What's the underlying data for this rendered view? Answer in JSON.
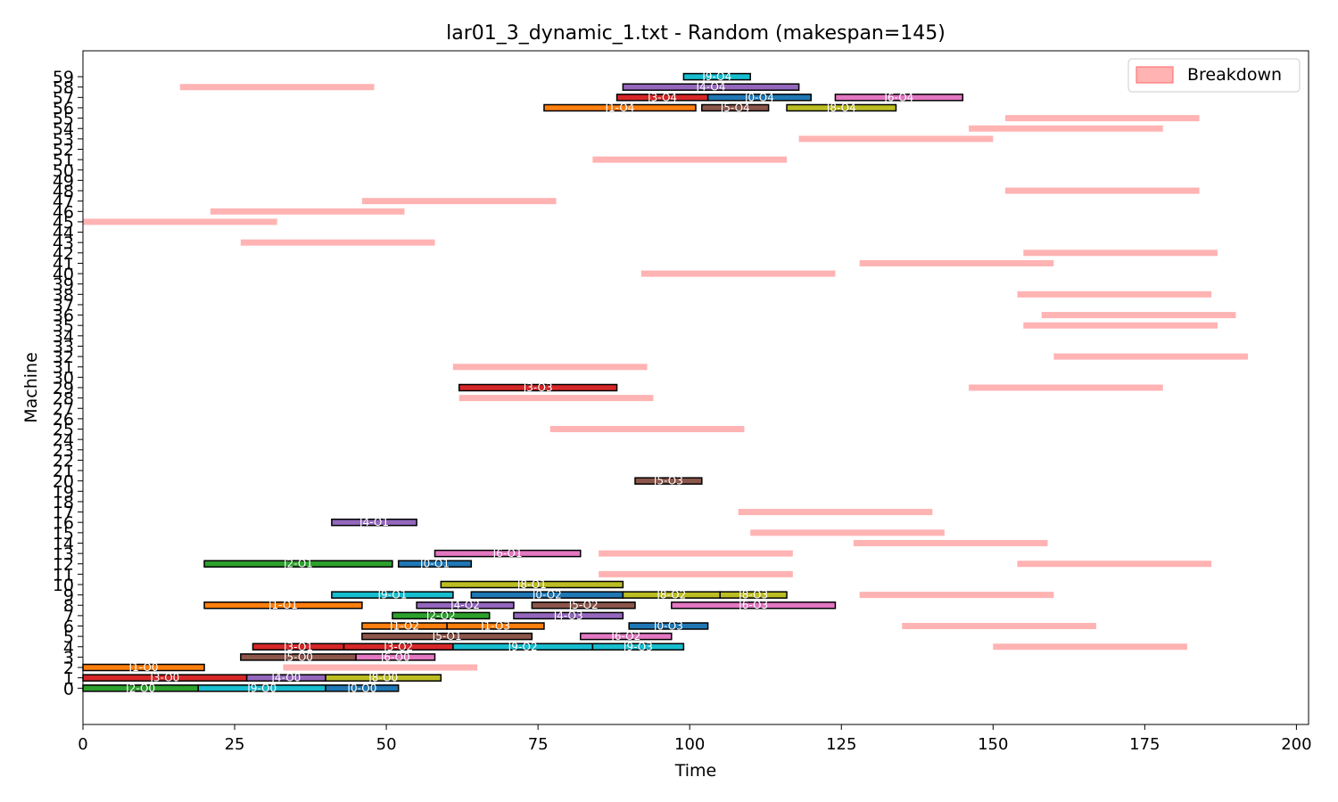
{
  "chart_data": {
    "type": "gantt",
    "title": "lar01_3_dynamic_1.txt - Random (makespan=145)",
    "xlabel": "Time",
    "ylabel": "Machine",
    "xlim": [
      0,
      202
    ],
    "ylim": [
      -3.5,
      61.5
    ],
    "xticks": [
      0,
      25,
      50,
      75,
      100,
      125,
      150,
      175,
      200
    ],
    "yticks": [
      0,
      1,
      2,
      3,
      4,
      5,
      6,
      7,
      8,
      9,
      10,
      11,
      12,
      13,
      14,
      15,
      16,
      17,
      18,
      19,
      20,
      21,
      22,
      23,
      24,
      25,
      26,
      27,
      28,
      29,
      30,
      31,
      32,
      33,
      34,
      35,
      36,
      37,
      38,
      39,
      40,
      41,
      42,
      43,
      44,
      45,
      46,
      47,
      48,
      49,
      50,
      51,
      52,
      53,
      54,
      55,
      56,
      57,
      58,
      59
    ],
    "legend": {
      "label": "Breakdown",
      "placement": "top-right",
      "color": "#ffb3b3"
    },
    "job_colors": {
      "J0": "#1f77b4",
      "J1": "#ff7f0e",
      "J2": "#2ca02c",
      "J3": "#d62728",
      "J4": "#9467bd",
      "J5": "#8c564b",
      "J6": "#e377c2",
      "J8": "#bcbd22",
      "J9": "#17becf"
    },
    "operations": [
      {
        "machine": 0,
        "start": 0,
        "end": 19,
        "job": "J2",
        "label": "J2-O0"
      },
      {
        "machine": 0,
        "start": 19,
        "end": 40,
        "job": "J9",
        "label": "J9-O0"
      },
      {
        "machine": 0,
        "start": 40,
        "end": 52,
        "job": "J0",
        "label": "J0-O0"
      },
      {
        "machine": 1,
        "start": 0,
        "end": 27,
        "job": "J3",
        "label": "J3-O0"
      },
      {
        "machine": 1,
        "start": 27,
        "end": 40,
        "job": "J4",
        "label": "J4-O0"
      },
      {
        "machine": 1,
        "start": 40,
        "end": 59,
        "job": "J8",
        "label": "J8-O0"
      },
      {
        "machine": 2,
        "start": 0,
        "end": 20,
        "job": "J1",
        "label": "J1-O0"
      },
      {
        "machine": 3,
        "start": 26,
        "end": 45,
        "job": "J5",
        "label": "J5-O0"
      },
      {
        "machine": 3,
        "start": 45,
        "end": 58,
        "job": "J6",
        "label": "J6-O0"
      },
      {
        "machine": 4,
        "start": 28,
        "end": 43,
        "job": "J3",
        "label": "J3-O1"
      },
      {
        "machine": 4,
        "start": 43,
        "end": 61,
        "job": "J3",
        "label": "J3-O2"
      },
      {
        "machine": 4,
        "start": 61,
        "end": 84,
        "job": "J9",
        "label": "J9-O2"
      },
      {
        "machine": 4,
        "start": 84,
        "end": 99,
        "job": "J9",
        "label": "J9-O3"
      },
      {
        "machine": 5,
        "start": 46,
        "end": 74,
        "job": "J5",
        "label": "J5-O1"
      },
      {
        "machine": 5,
        "start": 82,
        "end": 97,
        "job": "J6",
        "label": "J6-O2"
      },
      {
        "machine": 6,
        "start": 46,
        "end": 60,
        "job": "J1",
        "label": "J1-O2"
      },
      {
        "machine": 6,
        "start": 60,
        "end": 76,
        "job": "J1",
        "label": "J1-O3"
      },
      {
        "machine": 6,
        "start": 90,
        "end": 103,
        "job": "J0",
        "label": "J0-O3"
      },
      {
        "machine": 7,
        "start": 51,
        "end": 67,
        "job": "J2",
        "label": "J2-O2"
      },
      {
        "machine": 7,
        "start": 71,
        "end": 89,
        "job": "J4",
        "label": "J4-O3"
      },
      {
        "machine": 8,
        "start": 20,
        "end": 46,
        "job": "J1",
        "label": "J1-O1"
      },
      {
        "machine": 8,
        "start": 55,
        "end": 71,
        "job": "J4",
        "label": "J4-O2"
      },
      {
        "machine": 8,
        "start": 74,
        "end": 91,
        "job": "J5",
        "label": "J5-O2"
      },
      {
        "machine": 8,
        "start": 97,
        "end": 124,
        "job": "J6",
        "label": "J6-O3"
      },
      {
        "machine": 9,
        "start": 41,
        "end": 61,
        "job": "J9",
        "label": "J9-O1"
      },
      {
        "machine": 9,
        "start": 64,
        "end": 89,
        "job": "J0",
        "label": "J0-O2"
      },
      {
        "machine": 9,
        "start": 89,
        "end": 105,
        "job": "J8",
        "label": "J8-O2"
      },
      {
        "machine": 9,
        "start": 105,
        "end": 116,
        "job": "J8",
        "label": "J8-O3"
      },
      {
        "machine": 10,
        "start": 59,
        "end": 89,
        "job": "J8",
        "label": "J8-O1"
      },
      {
        "machine": 12,
        "start": 20,
        "end": 51,
        "job": "J2",
        "label": "J2-O1"
      },
      {
        "machine": 12,
        "start": 52,
        "end": 64,
        "job": "J0",
        "label": "J0-O1"
      },
      {
        "machine": 13,
        "start": 58,
        "end": 82,
        "job": "J6",
        "label": "J6-O1"
      },
      {
        "machine": 16,
        "start": 41,
        "end": 55,
        "job": "J4",
        "label": "J4-O1"
      },
      {
        "machine": 20,
        "start": 91,
        "end": 102,
        "job": "J5",
        "label": "J5-O3"
      },
      {
        "machine": 29,
        "start": 62,
        "end": 88,
        "job": "J3",
        "label": "J3-O3"
      },
      {
        "machine": 56,
        "start": 76,
        "end": 101,
        "job": "J1",
        "label": "J1-O4"
      },
      {
        "machine": 56,
        "start": 102,
        "end": 113,
        "job": "J5",
        "label": "J5-O4"
      },
      {
        "machine": 56,
        "start": 116,
        "end": 134,
        "job": "J8",
        "label": "J8-O4"
      },
      {
        "machine": 57,
        "start": 88,
        "end": 103,
        "job": "J3",
        "label": "J3-O4"
      },
      {
        "machine": 57,
        "start": 103,
        "end": 120,
        "job": "J0",
        "label": "J0-O4"
      },
      {
        "machine": 57,
        "start": 124,
        "end": 145,
        "job": "J6",
        "label": "J6-O4"
      },
      {
        "machine": 58,
        "start": 89,
        "end": 118,
        "job": "J4",
        "label": "J4-O4"
      },
      {
        "machine": 59,
        "start": 99,
        "end": 110,
        "job": "J9",
        "label": "J9-O4"
      }
    ],
    "breakdowns": [
      {
        "machine": 2,
        "start": 33,
        "end": 65
      },
      {
        "machine": 4,
        "start": 150,
        "end": 182
      },
      {
        "machine": 6,
        "start": 135,
        "end": 167
      },
      {
        "machine": 9,
        "start": 128,
        "end": 160
      },
      {
        "machine": 11,
        "start": 85,
        "end": 117
      },
      {
        "machine": 12,
        "start": 154,
        "end": 186
      },
      {
        "machine": 13,
        "start": 85,
        "end": 117
      },
      {
        "machine": 14,
        "start": 127,
        "end": 159
      },
      {
        "machine": 15,
        "start": 110,
        "end": 142
      },
      {
        "machine": 17,
        "start": 108,
        "end": 140
      },
      {
        "machine": 25,
        "start": 77,
        "end": 109
      },
      {
        "machine": 28,
        "start": 62,
        "end": 94
      },
      {
        "machine": 29,
        "start": 146,
        "end": 178
      },
      {
        "machine": 31,
        "start": 61,
        "end": 93
      },
      {
        "machine": 32,
        "start": 160,
        "end": 192
      },
      {
        "machine": 35,
        "start": 155,
        "end": 187
      },
      {
        "machine": 36,
        "start": 158,
        "end": 190
      },
      {
        "machine": 38,
        "start": 154,
        "end": 186
      },
      {
        "machine": 40,
        "start": 92,
        "end": 124
      },
      {
        "machine": 41,
        "start": 128,
        "end": 160
      },
      {
        "machine": 42,
        "start": 155,
        "end": 187
      },
      {
        "machine": 43,
        "start": 26,
        "end": 58
      },
      {
        "machine": 45,
        "start": 0,
        "end": 32
      },
      {
        "machine": 46,
        "start": 21,
        "end": 53
      },
      {
        "machine": 47,
        "start": 46,
        "end": 78
      },
      {
        "machine": 48,
        "start": 152,
        "end": 184
      },
      {
        "machine": 51,
        "start": 84,
        "end": 116
      },
      {
        "machine": 53,
        "start": 118,
        "end": 150
      },
      {
        "machine": 54,
        "start": 146,
        "end": 178
      },
      {
        "machine": 55,
        "start": 152,
        "end": 184
      },
      {
        "machine": 58,
        "start": 16,
        "end": 48
      }
    ]
  }
}
